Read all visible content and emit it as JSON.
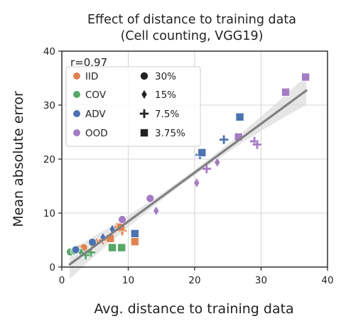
{
  "chart_data": {
    "type": "scatter",
    "title": [
      "Effect of distance to training data",
      "(Cell counting, VGG19)"
    ],
    "xlabel": "Avg. distance to training data",
    "ylabel": "Mean absolute error",
    "xlim": [
      0,
      40
    ],
    "ylim": [
      0,
      40
    ],
    "xticks": [
      0,
      10,
      20,
      30,
      40
    ],
    "yticks": [
      0,
      10,
      20,
      30,
      40
    ],
    "grid": true,
    "legend_position": "upper-left",
    "annotation": "r=0.97",
    "regression": {
      "x0": 1.2,
      "y0": 0.5,
      "x1": 36.8,
      "y1": 32.7,
      "ci_color": "#d9d9d9"
    },
    "colors": {
      "IID": "#dd8452",
      "COV": "#55a868",
      "ADV": "#4c72b0",
      "OOD": "#a47cc4"
    },
    "legend_groups": [
      {
        "label": "IID",
        "color": "#dd8452"
      },
      {
        "label": "COV",
        "color": "#55a868"
      },
      {
        "label": "ADV",
        "color": "#4c72b0"
      },
      {
        "label": "OOD",
        "color": "#a47cc4"
      }
    ],
    "legend_markers": [
      {
        "label": "30%",
        "marker": "circle"
      },
      {
        "label": "15%",
        "marker": "diamond"
      },
      {
        "label": "7.5%",
        "marker": "plus"
      },
      {
        "label": "3.75%",
        "marker": "square"
      }
    ],
    "points": [
      {
        "group": "IID",
        "marker": "circle",
        "x": 2.5,
        "y": 3.3
      },
      {
        "group": "IID",
        "marker": "circle",
        "x": 3.3,
        "y": 3.6
      },
      {
        "group": "IID",
        "marker": "diamond",
        "x": 4.6,
        "y": 4.1
      },
      {
        "group": "IID",
        "marker": "diamond",
        "x": 5.2,
        "y": 4.6
      },
      {
        "group": "IID",
        "marker": "plus",
        "x": 8.3,
        "y": 7.4
      },
      {
        "group": "IID",
        "marker": "plus",
        "x": 9.1,
        "y": 6.7
      },
      {
        "group": "IID",
        "marker": "plus",
        "x": 6.2,
        "y": 5.0
      },
      {
        "group": "IID",
        "marker": "square",
        "x": 7.3,
        "y": 5.3
      },
      {
        "group": "IID",
        "marker": "square",
        "x": 8.9,
        "y": 7.4
      },
      {
        "group": "IID",
        "marker": "square",
        "x": 11.0,
        "y": 4.7
      },
      {
        "group": "COV",
        "marker": "circle",
        "x": 1.3,
        "y": 2.8
      },
      {
        "group": "COV",
        "marker": "circle",
        "x": 1.9,
        "y": 3.0
      },
      {
        "group": "COV",
        "marker": "diamond",
        "x": 2.9,
        "y": 2.7
      },
      {
        "group": "COV",
        "marker": "plus",
        "x": 3.6,
        "y": 2.2
      },
      {
        "group": "COV",
        "marker": "plus",
        "x": 4.4,
        "y": 2.7
      },
      {
        "group": "COV",
        "marker": "square",
        "x": 7.6,
        "y": 3.6
      },
      {
        "group": "COV",
        "marker": "square",
        "x": 9.0,
        "y": 3.6
      },
      {
        "group": "ADV",
        "marker": "circle",
        "x": 2.1,
        "y": 3.2
      },
      {
        "group": "ADV",
        "marker": "circle",
        "x": 4.6,
        "y": 4.6
      },
      {
        "group": "ADV",
        "marker": "diamond",
        "x": 6.2,
        "y": 5.5
      },
      {
        "group": "ADV",
        "marker": "diamond",
        "x": 7.6,
        "y": 7.0
      },
      {
        "group": "ADV",
        "marker": "plus",
        "x": 20.8,
        "y": 20.8
      },
      {
        "group": "ADV",
        "marker": "plus",
        "x": 24.4,
        "y": 23.6
      },
      {
        "group": "ADV",
        "marker": "square",
        "x": 11.0,
        "y": 6.2
      },
      {
        "group": "ADV",
        "marker": "square",
        "x": 21.1,
        "y": 21.2
      },
      {
        "group": "ADV",
        "marker": "square",
        "x": 26.8,
        "y": 27.8
      },
      {
        "group": "OOD",
        "marker": "circle",
        "x": 9.1,
        "y": 8.8
      },
      {
        "group": "OOD",
        "marker": "circle",
        "x": 13.3,
        "y": 12.7
      },
      {
        "group": "OOD",
        "marker": "diamond",
        "x": 14.2,
        "y": 10.4
      },
      {
        "group": "OOD",
        "marker": "diamond",
        "x": 20.3,
        "y": 15.6
      },
      {
        "group": "OOD",
        "marker": "diamond",
        "x": 23.4,
        "y": 19.4
      },
      {
        "group": "OOD",
        "marker": "plus",
        "x": 21.8,
        "y": 18.2
      },
      {
        "group": "OOD",
        "marker": "plus",
        "x": 29.0,
        "y": 23.3
      },
      {
        "group": "OOD",
        "marker": "plus",
        "x": 29.4,
        "y": 22.7
      },
      {
        "group": "OOD",
        "marker": "square",
        "x": 26.6,
        "y": 24.1
      },
      {
        "group": "OOD",
        "marker": "square",
        "x": 33.7,
        "y": 32.4
      },
      {
        "group": "OOD",
        "marker": "square",
        "x": 36.7,
        "y": 35.2
      }
    ]
  }
}
